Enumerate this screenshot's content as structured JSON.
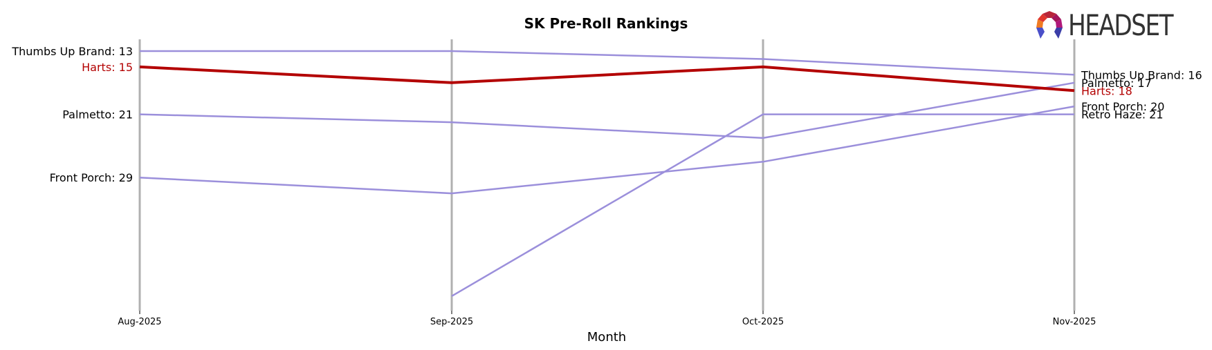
{
  "title": "SK Pre-Roll Rankings",
  "logo": {
    "text": "HEADSET",
    "icon": "headset-logo-icon"
  },
  "chart_data": {
    "type": "line",
    "title": "SK Pre-Roll Rankings",
    "xlabel": "Month",
    "ylabel": "",
    "categories": [
      "Aug-2025",
      "Sep-2025",
      "Oct-2025",
      "Nov-2025"
    ],
    "y_inverted": true,
    "ylim": [
      45,
      12
    ],
    "grid": false,
    "legend": "direct labels at first and last month",
    "series": [
      {
        "name": "Thumbs Up Brand",
        "values": [
          13,
          13,
          14,
          16
        ],
        "color": "#9b8fdb",
        "highlight": false
      },
      {
        "name": "Harts",
        "values": [
          15,
          17,
          15,
          18
        ],
        "color": "#b30000",
        "highlight": true
      },
      {
        "name": "Palmetto",
        "values": [
          21,
          22,
          24,
          17
        ],
        "color": "#9b8fdb",
        "highlight": false
      },
      {
        "name": "Front Porch",
        "values": [
          29,
          31,
          27,
          20
        ],
        "color": "#9b8fdb",
        "highlight": false
      },
      {
        "name": "Retro Haze",
        "values": [
          null,
          44,
          21,
          21
        ],
        "color": "#9b8fdb",
        "highlight": false
      }
    ],
    "left_labels": [
      {
        "text": "Thumbs Up Brand: 13",
        "color": "#000000"
      },
      {
        "text": "Harts: 15",
        "color": "#b30000"
      },
      {
        "text": "Palmetto: 21",
        "color": "#000000"
      },
      {
        "text": "Front Porch: 29",
        "color": "#000000"
      }
    ],
    "right_labels": [
      {
        "text": "Thumbs Up Brand: 16",
        "color": "#000000"
      },
      {
        "text": "Palmetto: 17",
        "color": "#000000"
      },
      {
        "text": "Harts: 18",
        "color": "#b30000"
      },
      {
        "text": "Front Porch: 20",
        "color": "#000000"
      },
      {
        "text": "Retro Haze: 21",
        "color": "#000000"
      }
    ]
  },
  "colors": {
    "highlight": "#b30000",
    "others": "#9b8fdb",
    "axis": "#b0b0b0"
  }
}
